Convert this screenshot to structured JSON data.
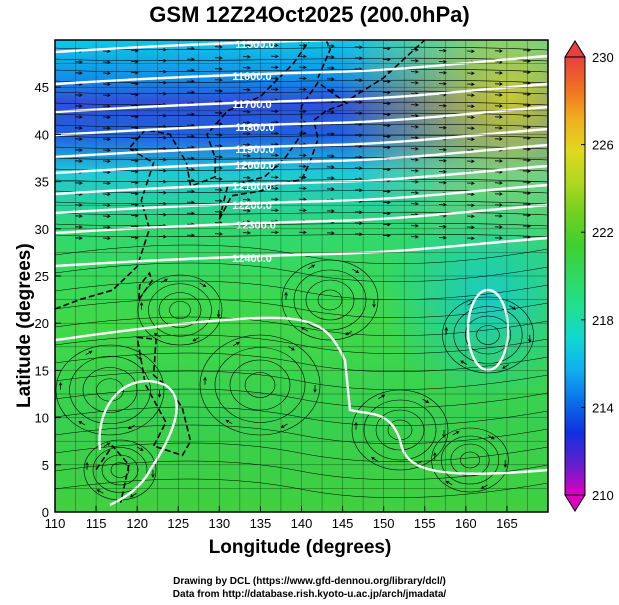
{
  "title": "GSM 12Z24Oct2025 (200.0hPa)",
  "xaxis": {
    "label": "Longitude (degrees)",
    "ticks": [
      "110",
      "115",
      "120",
      "125",
      "130",
      "135",
      "140",
      "145",
      "150",
      "155",
      "160",
      "165"
    ]
  },
  "yaxis": {
    "label": "Latitude (degrees)",
    "ticks": [
      "0",
      "5",
      "10",
      "15",
      "20",
      "25",
      "30",
      "35",
      "40",
      "45"
    ]
  },
  "colorbar": {
    "ticks": [
      "210",
      "214",
      "218",
      "222",
      "226",
      "230"
    ],
    "colors": [
      "#e000c0",
      "#6020d0",
      "#1030e0",
      "#0a70e8",
      "#10b0f0",
      "#10d8d0",
      "#20e090",
      "#30d860",
      "#40d030",
      "#70d020",
      "#b0d820",
      "#e0d820",
      "#f0b020",
      "#f07020",
      "#e84040"
    ]
  },
  "contours": {
    "labels": [
      "11500.0",
      "11600.0",
      "11700.0",
      "11800.0",
      "11900.0",
      "12000.0",
      "12100.0",
      "12200.0",
      "12300.0",
      "12400.0"
    ]
  },
  "credits": {
    "line1": "Drawing by DCL (https://www.gfd-dennou.org/library/dcl/)",
    "line2": "Data from http://database.rish.kyoto-u.ac.jp/arch/jmadata/"
  }
}
